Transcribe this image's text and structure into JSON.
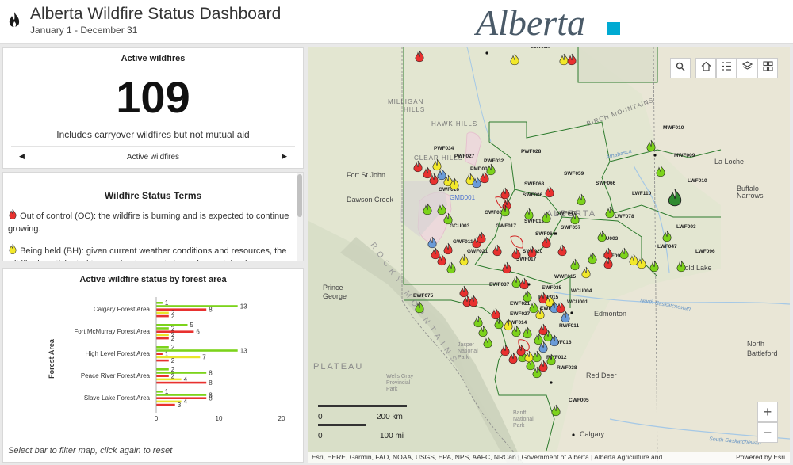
{
  "header": {
    "title": "Alberta Wildfire Status Dashboard",
    "subtitle": "January 1 - December 31",
    "logo_text": "Alberta"
  },
  "active_panel": {
    "title": "Active wildfires",
    "count": "109",
    "note": "Includes carryover wildfires but not mutual aid",
    "pager_label": "Active wildfires"
  },
  "terms_panel": {
    "title": "Wildfire Status Terms",
    "oc_text": "Out of control (OC): the wildfire is burning and is expected to continue growing.",
    "bh_text": "Being held (BH): given current weather conditions and resources, the wildfire is anticipated to remain at current size or be contained."
  },
  "status_chart_panel": {
    "title": "Active wildfire status by forest area",
    "footnote": "Select bar to filter map, click again to reset"
  },
  "chart_data": {
    "type": "bar",
    "orientation": "horizontal",
    "ylabel": "Forest Area",
    "xlim": [
      0,
      20
    ],
    "xticks": [
      "0",
      "10",
      "20"
    ],
    "categories": [
      "Calgary Forest Area",
      "Fort McMurray Forest Area",
      "High Level Forest Area",
      "Peace River Forest Area",
      "Slave Lake Forest Area"
    ],
    "series": [
      {
        "color": "#7cd31b",
        "values": [
          1,
          5,
          2,
          2,
          1
        ]
      },
      {
        "color": "#7cd31b",
        "values": [
          13,
          2,
          13,
          8,
          8
        ]
      },
      {
        "color": "#e8312f",
        "values": [
          8,
          6,
          1,
          2,
          8
        ]
      },
      {
        "color": "#e8e62a",
        "values": [
          2,
          2,
          7,
          4,
          4
        ]
      },
      {
        "color": "#e8312f",
        "values": [
          2,
          2,
          2,
          8,
          3
        ]
      }
    ],
    "grid": false
  },
  "map": {
    "tools": [
      "search-icon",
      "home-icon",
      "legend-icon",
      "layers-icon",
      "basemap-icon"
    ],
    "zoom_in": "+",
    "zoom_out": "−",
    "scale_km": "200 km",
    "scale_mi": "100 mi",
    "attribution": "Esri, HERE, Garmin, FAO, NOAA, USGS, EPA, NPS, AAFC, NRCan | Government of Alberta | Alberta Agriculture and...",
    "powered_by": "Powered by Esri",
    "place_labels": [
      {
        "text": "MILLIGAN",
        "key": "milligan"
      },
      {
        "text": "HILLS",
        "key": "hills"
      },
      {
        "text": "HAWK HILLS",
        "key": "hawk"
      },
      {
        "text": "BIRCH MOUNTAINS",
        "key": "birch"
      },
      {
        "text": "CLEAR HILLS",
        "key": "clear"
      },
      {
        "text": "Fort St John",
        "key": "fsj"
      },
      {
        "text": "Dawson Creek",
        "key": "dawson"
      },
      {
        "text": "La Loche",
        "key": "laloche"
      },
      {
        "text": "Buffalo",
        "key": "buffalo1"
      },
      {
        "text": "Narrows",
        "key": "buffalo2"
      },
      {
        "text": "Prince",
        "key": "prince1"
      },
      {
        "text": "George",
        "key": "prince2"
      },
      {
        "text": "Edmonton",
        "key": "edmonton"
      },
      {
        "text": "Red Deer",
        "key": "reddeer"
      },
      {
        "text": "Calgary",
        "key": "calgary"
      },
      {
        "text": "North",
        "key": "nb1"
      },
      {
        "text": "Battleford",
        "key": "nb2"
      },
      {
        "text": "PLATEAU",
        "key": "plateau"
      },
      {
        "text": "Cold Lake",
        "key": "coldlake"
      },
      {
        "text": "Jasper",
        "key": "jasper1"
      },
      {
        "text": "National",
        "key": "jasper2"
      },
      {
        "text": "Park",
        "key": "jasper3"
      },
      {
        "text": "Wells Gray",
        "key": "wg1"
      },
      {
        "text": "Provincial",
        "key": "wg2"
      },
      {
        "text": "Park",
        "key": "wg3"
      },
      {
        "text": "Banff",
        "key": "banff1"
      },
      {
        "text": "National",
        "key": "banff2"
      },
      {
        "text": "Park",
        "key": "banff3"
      },
      {
        "text": "North Saskatchewan",
        "key": "nsask"
      },
      {
        "text": "South Saskatchewan",
        "key": "ssask"
      },
      {
        "text": "Athabasca",
        "key": "athab"
      },
      {
        "text": "ALBERTA",
        "key": "alberta"
      },
      {
        "text": "GMD001",
        "key": "gmd"
      },
      {
        "text": "ROCKY MOUNTAINS",
        "key": "rocky"
      }
    ],
    "fire_labels": [
      {
        "text": "PWF034",
        "key": "f1"
      },
      {
        "text": "PWF027",
        "key": "f2"
      },
      {
        "text": "PWF032",
        "key": "f3"
      },
      {
        "text": "PMD002",
        "key": "f4"
      },
      {
        "text": "PWF028",
        "key": "f5"
      },
      {
        "text": "GWF016",
        "key": "f6"
      },
      {
        "text": "SWF068",
        "key": "f7"
      },
      {
        "text": "SWF006",
        "key": "f8"
      },
      {
        "text": "SWF059",
        "key": "f9"
      },
      {
        "text": "SWF066",
        "key": "f10"
      },
      {
        "text": "LWF110",
        "key": "f11"
      },
      {
        "text": "MWF010",
        "key": "f12"
      },
      {
        "text": "MWF009",
        "key": "f13"
      },
      {
        "text": "LWF010",
        "key": "f14"
      },
      {
        "text": "GWF004",
        "key": "f15"
      },
      {
        "text": "SWF047",
        "key": "f16"
      },
      {
        "text": "LWF078",
        "key": "f17"
      },
      {
        "text": "SWF019",
        "key": "f18"
      },
      {
        "text": "GCU003",
        "key": "f19"
      },
      {
        "text": "GWF017",
        "key": "f20"
      },
      {
        "text": "SWF064",
        "key": "f21"
      },
      {
        "text": "SWF057",
        "key": "f22"
      },
      {
        "text": "LWF093",
        "key": "f23"
      },
      {
        "text": "LCU003",
        "key": "f24"
      },
      {
        "text": "GWF011",
        "key": "f25"
      },
      {
        "text": "GWF021",
        "key": "f26"
      },
      {
        "text": "SWF020",
        "key": "f27"
      },
      {
        "text": "LWF047",
        "key": "f28"
      },
      {
        "text": "LWF096",
        "key": "f29"
      },
      {
        "text": "LWF091",
        "key": "f30"
      },
      {
        "text": "SWF017",
        "key": "f31"
      },
      {
        "text": "EWF037",
        "key": "f32"
      },
      {
        "text": "WWF015",
        "key": "f33"
      },
      {
        "text": "EWF035",
        "key": "f34"
      },
      {
        "text": "WCU004",
        "key": "f35"
      },
      {
        "text": "EWF075",
        "key": "f36"
      },
      {
        "text": "EWF015",
        "key": "f37"
      },
      {
        "text": "WCU001",
        "key": "f38"
      },
      {
        "text": "EWF021",
        "key": "f39"
      },
      {
        "text": "EWF027",
        "key": "f40"
      },
      {
        "text": "EWF039",
        "key": "f41"
      },
      {
        "text": "RWF011",
        "key": "f42"
      },
      {
        "text": "EWF014",
        "key": "f43"
      },
      {
        "text": "RWF016",
        "key": "f44"
      },
      {
        "text": "RWF012",
        "key": "f45"
      },
      {
        "text": "RWF038",
        "key": "f46"
      },
      {
        "text": "CWF005",
        "key": "f47"
      },
      {
        "text": "PWF042",
        "key": "f48"
      }
    ]
  }
}
